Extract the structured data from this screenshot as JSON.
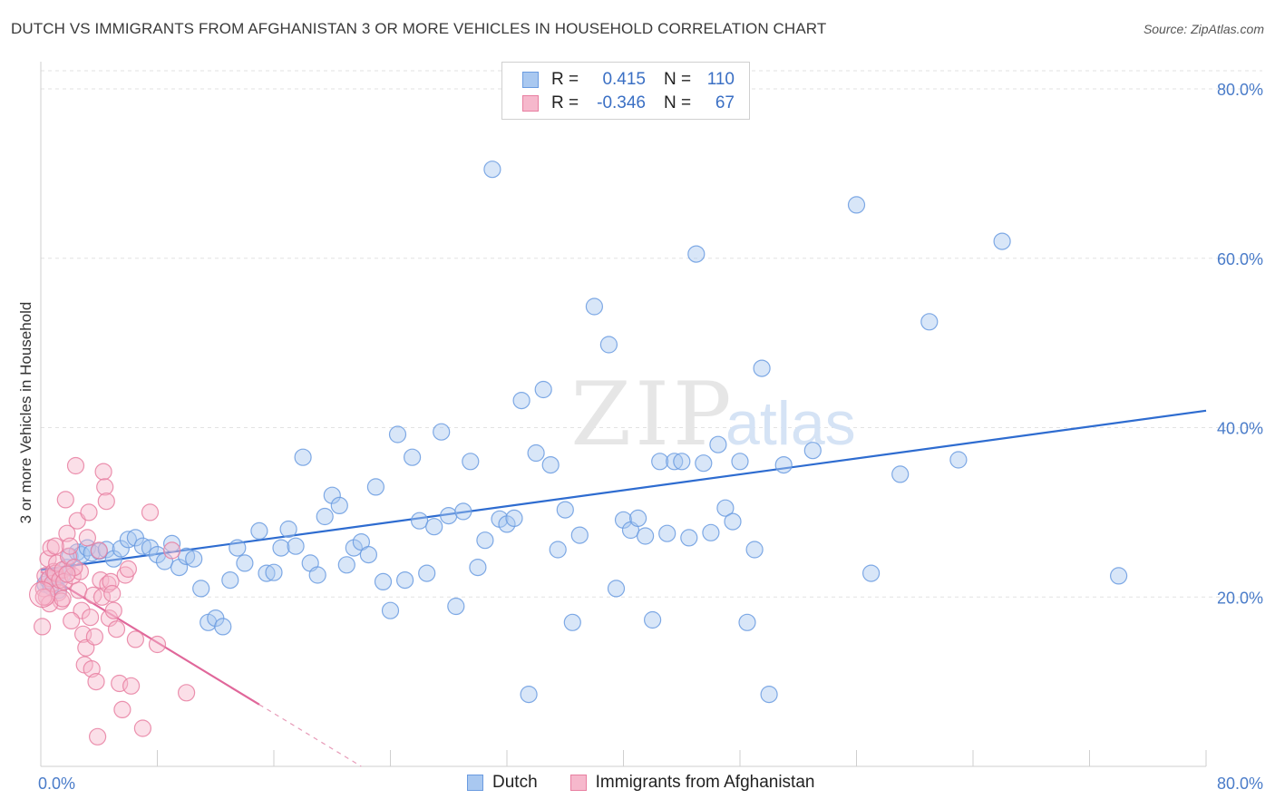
{
  "title": "DUTCH VS IMMIGRANTS FROM AFGHANISTAN 3 OR MORE VEHICLES IN HOUSEHOLD CORRELATION CHART",
  "source": "Source: ZipAtlas.com",
  "watermark": {
    "zip": "ZIP",
    "atlas": "atlas"
  },
  "legend": {
    "rows": [
      {
        "r_label": "R =",
        "r_value": "0.415",
        "n_label": "N =",
        "n_value": "110",
        "color": "#a9c8f0",
        "border": "#6a9be0"
      },
      {
        "r_label": "R =",
        "r_value": "-0.346",
        "n_label": "N =",
        "n_value": "67",
        "color": "#f6b8cc",
        "border": "#e87fa1"
      }
    ]
  },
  "bottom_legend": [
    {
      "label": "Dutch",
      "color": "#a9c8f0",
      "border": "#6a9be0"
    },
    {
      "label": "Immigrants from Afghanistan",
      "color": "#f6b8cc",
      "border": "#e87fa1"
    }
  ],
  "chart_data": {
    "type": "scatter",
    "title": "DUTCH VS IMMIGRANTS FROM AFGHANISTAN 3 OR MORE VEHICLES IN HOUSEHOLD CORRELATION CHART",
    "xlabel": "",
    "ylabel": "3 or more Vehicles in Household",
    "xlim": [
      0,
      80
    ],
    "ylim": [
      0,
      80
    ],
    "x_tick_labels": [
      "0.0%",
      "80.0%"
    ],
    "y_ticks": [
      20,
      40,
      60,
      80
    ],
    "y_tick_labels": [
      "20.0%",
      "40.0%",
      "60.0%",
      "80.0%"
    ],
    "grid": true,
    "series": [
      {
        "name": "Dutch",
        "color": "#6a9be0",
        "fill": "#a9c8f0",
        "trend": {
          "x0": 0,
          "y0": 23.2,
          "x1": 80,
          "y1": 42.0
        },
        "points": [
          [
            0.3,
            21.5
          ],
          [
            0.5,
            22.0
          ],
          [
            0.7,
            21.2
          ],
          [
            1.0,
            22.3
          ],
          [
            1.2,
            20.8
          ],
          [
            1.5,
            22.6
          ],
          [
            1.8,
            23.5
          ],
          [
            2.0,
            24.8
          ],
          [
            2.5,
            25.3
          ],
          [
            2.8,
            25.0
          ],
          [
            3.2,
            25.8
          ],
          [
            3.5,
            25.2
          ],
          [
            4.0,
            25.4
          ],
          [
            4.5,
            25.6
          ],
          [
            5.0,
            24.5
          ],
          [
            5.5,
            25.7
          ],
          [
            6.0,
            26.8
          ],
          [
            6.5,
            27.0
          ],
          [
            7.0,
            26.0
          ],
          [
            7.5,
            25.8
          ],
          [
            8.0,
            25.0
          ],
          [
            8.5,
            24.2
          ],
          [
            9.0,
            26.3
          ],
          [
            9.5,
            23.5
          ],
          [
            10.0,
            24.8
          ],
          [
            10.5,
            24.5
          ],
          [
            11.0,
            21.0
          ],
          [
            11.5,
            17.0
          ],
          [
            12.0,
            17.5
          ],
          [
            12.5,
            16.5
          ],
          [
            13.0,
            22.0
          ],
          [
            13.5,
            25.8
          ],
          [
            14.0,
            24.0
          ],
          [
            15.0,
            27.8
          ],
          [
            15.5,
            22.8
          ],
          [
            16.0,
            22.9
          ],
          [
            16.5,
            25.8
          ],
          [
            17.0,
            28.0
          ],
          [
            17.5,
            26.0
          ],
          [
            18.0,
            36.5
          ],
          [
            18.5,
            24.0
          ],
          [
            19.0,
            22.6
          ],
          [
            19.5,
            29.5
          ],
          [
            20.0,
            32.0
          ],
          [
            20.5,
            30.8
          ],
          [
            21.0,
            23.8
          ],
          [
            21.5,
            25.8
          ],
          [
            22.0,
            26.5
          ],
          [
            22.5,
            25.0
          ],
          [
            23.0,
            33.0
          ],
          [
            23.5,
            21.8
          ],
          [
            24.0,
            18.4
          ],
          [
            24.5,
            39.2
          ],
          [
            25.0,
            22.0
          ],
          [
            25.5,
            36.5
          ],
          [
            26.0,
            29.0
          ],
          [
            26.5,
            22.8
          ],
          [
            27.0,
            28.3
          ],
          [
            27.5,
            39.5
          ],
          [
            28.0,
            29.6
          ],
          [
            28.5,
            18.9
          ],
          [
            29.0,
            30.1
          ],
          [
            29.5,
            36.0
          ],
          [
            30.0,
            23.5
          ],
          [
            30.5,
            26.7
          ],
          [
            31.0,
            70.5
          ],
          [
            31.5,
            29.2
          ],
          [
            32.0,
            28.6
          ],
          [
            32.5,
            29.3
          ],
          [
            33.0,
            43.2
          ],
          [
            33.5,
            8.5
          ],
          [
            34.0,
            37.0
          ],
          [
            34.5,
            44.5
          ],
          [
            35.0,
            35.6
          ],
          [
            35.5,
            25.6
          ],
          [
            36.0,
            30.3
          ],
          [
            36.5,
            17.0
          ],
          [
            37.0,
            27.3
          ],
          [
            38.0,
            54.3
          ],
          [
            39.0,
            49.8
          ],
          [
            39.5,
            21.0
          ],
          [
            40.0,
            29.1
          ],
          [
            40.5,
            27.9
          ],
          [
            41.0,
            29.3
          ],
          [
            41.5,
            27.2
          ],
          [
            42.0,
            17.3
          ],
          [
            42.5,
            36.0
          ],
          [
            43.0,
            27.5
          ],
          [
            43.5,
            36.0
          ],
          [
            44.0,
            36.0
          ],
          [
            44.5,
            27.0
          ],
          [
            45.0,
            60.5
          ],
          [
            45.5,
            35.8
          ],
          [
            46.0,
            27.6
          ],
          [
            46.5,
            38.0
          ],
          [
            47.0,
            30.5
          ],
          [
            47.5,
            28.9
          ],
          [
            48.0,
            36.0
          ],
          [
            48.5,
            17.0
          ],
          [
            49.0,
            25.6
          ],
          [
            49.5,
            47.0
          ],
          [
            50.0,
            8.5
          ],
          [
            51.0,
            35.6
          ],
          [
            53.0,
            37.3
          ],
          [
            56.0,
            66.3
          ],
          [
            57.0,
            22.8
          ],
          [
            59.0,
            34.5
          ],
          [
            61.0,
            52.5
          ],
          [
            63.0,
            36.2
          ],
          [
            66.0,
            62.0
          ],
          [
            74.0,
            22.5
          ]
        ]
      },
      {
        "name": "Immigrants from Afghanistan",
        "color": "#e87fa1",
        "fill": "#f6b8cc",
        "trend": {
          "x0": 0,
          "y0": 23.0,
          "x1": 15.0,
          "y1": 7.3
        },
        "trend_dashed_to": {
          "x": 22.0,
          "y": 0.0
        },
        "points": [
          [
            0.1,
            16.5
          ],
          [
            0.2,
            21.0
          ],
          [
            0.3,
            22.5
          ],
          [
            0.4,
            20.0
          ],
          [
            0.5,
            24.5
          ],
          [
            0.6,
            22.2
          ],
          [
            0.7,
            25.8
          ],
          [
            0.8,
            21.6
          ],
          [
            0.9,
            23.0
          ],
          [
            1.0,
            22.8
          ],
          [
            1.1,
            24.0
          ],
          [
            1.2,
            20.5
          ],
          [
            1.3,
            22.0
          ],
          [
            1.4,
            19.5
          ],
          [
            1.5,
            23.2
          ],
          [
            1.6,
            21.8
          ],
          [
            1.7,
            31.5
          ],
          [
            1.8,
            27.5
          ],
          [
            1.9,
            24.8
          ],
          [
            2.0,
            26.0
          ],
          [
            2.2,
            22.5
          ],
          [
            2.4,
            35.5
          ],
          [
            2.5,
            29.0
          ],
          [
            2.6,
            20.8
          ],
          [
            2.7,
            23.0
          ],
          [
            2.8,
            18.4
          ],
          [
            2.9,
            15.6
          ],
          [
            3.0,
            12.0
          ],
          [
            3.1,
            14.0
          ],
          [
            3.2,
            27.0
          ],
          [
            3.3,
            30.0
          ],
          [
            3.4,
            17.6
          ],
          [
            3.5,
            11.5
          ],
          [
            3.6,
            20.2
          ],
          [
            3.7,
            15.3
          ],
          [
            3.8,
            10.0
          ],
          [
            3.9,
            3.5
          ],
          [
            4.0,
            25.5
          ],
          [
            4.1,
            22.0
          ],
          [
            4.2,
            20.0
          ],
          [
            4.3,
            34.8
          ],
          [
            4.4,
            33.0
          ],
          [
            4.5,
            31.3
          ],
          [
            4.6,
            21.5
          ],
          [
            4.7,
            17.5
          ],
          [
            4.8,
            21.8
          ],
          [
            4.9,
            20.4
          ],
          [
            5.0,
            18.4
          ],
          [
            5.2,
            16.2
          ],
          [
            5.4,
            9.8
          ],
          [
            5.6,
            6.7
          ],
          [
            5.8,
            22.6
          ],
          [
            6.0,
            23.3
          ],
          [
            6.2,
            9.5
          ],
          [
            6.5,
            15.0
          ],
          [
            7.0,
            4.5
          ],
          [
            7.5,
            30.0
          ],
          [
            8.0,
            14.4
          ],
          [
            9.0,
            25.5
          ],
          [
            10.0,
            8.7
          ],
          [
            0.6,
            19.2
          ],
          [
            1.0,
            26.0
          ],
          [
            1.5,
            19.8
          ],
          [
            2.1,
            17.2
          ],
          [
            2.3,
            23.5
          ],
          [
            0.2,
            20.0
          ],
          [
            1.8,
            22.7
          ]
        ]
      }
    ]
  }
}
